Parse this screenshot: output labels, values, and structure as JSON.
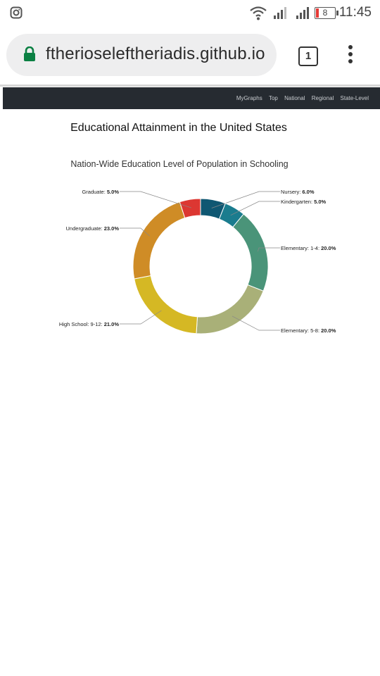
{
  "status_bar": {
    "time": "11:45",
    "battery": "8"
  },
  "browser": {
    "url": "ftherioseleftheriadis.github.io",
    "tab_count": "1"
  },
  "site": {
    "nav": [
      "MyGraphs",
      "Top",
      "National",
      "Regional",
      "State-Level"
    ],
    "page_title": "Educational Attainment in the United States"
  },
  "chart_data": {
    "type": "pie",
    "variant": "donut",
    "title": "Nation-Wide Education Level of Population in Schooling",
    "slices": [
      {
        "label": "Nursery",
        "value": 6.0,
        "display": "6.0%",
        "color": "#0f5772"
      },
      {
        "label": "Kindergarten",
        "value": 5.0,
        "display": "5.0%",
        "color": "#1a7c8e"
      },
      {
        "label": "Elementary: 1-4",
        "value": 20.0,
        "display": "20.0%",
        "color": "#4a9479"
      },
      {
        "label": "Elementary: 5-8",
        "value": 20.0,
        "display": "20.0%",
        "color": "#a9b078"
      },
      {
        "label": "High School: 9-12",
        "value": 21.0,
        "display": "21.0%",
        "color": "#d5b824"
      },
      {
        "label": "Undergraduate",
        "value": 23.0,
        "display": "23.0%",
        "color": "#cf8c26"
      },
      {
        "label": "Graduate",
        "value": 5.0,
        "display": "5.0%",
        "color": "#dc3732"
      }
    ]
  }
}
